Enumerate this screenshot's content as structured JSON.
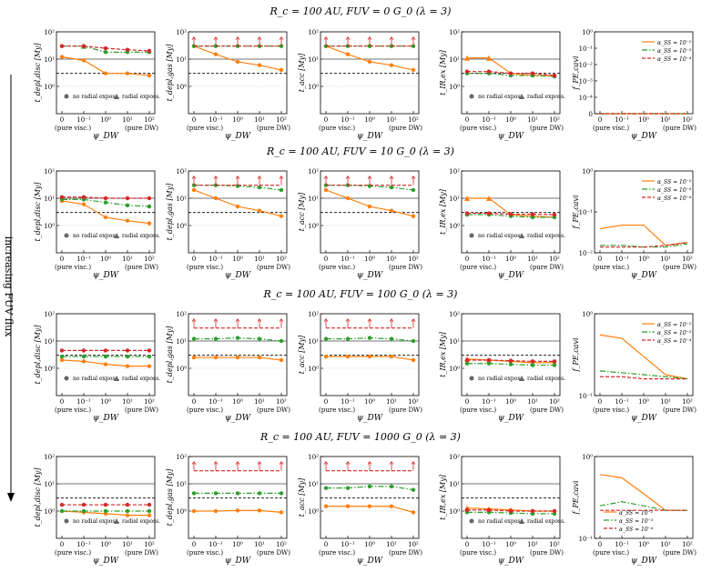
{
  "figure": {
    "side_label": "increasing FUV flux",
    "panel_titles": [
      "R_c = 100 AU, FUV = 0 G_0 (λ = 3)",
      "R_c = 100 AU, FUV = 10 G_0 (λ = 3)",
      "R_c = 100 AU, FUV = 100 G_0 (λ = 3)",
      "R_c = 100 AU, FUV = 1000 G_0 (λ = 3)"
    ],
    "ylabels": [
      "t_depl,disc [My]",
      "t_depl,gas [My]",
      "t_acc [My]",
      "t_IR,ex [My]",
      "f_PE,cavi"
    ],
    "xlabel_psi": "ψ_DW",
    "xlabel_last": "ψ_DW",
    "xticks": [
      "0",
      "10⁻¹",
      "10⁰",
      "10¹",
      "10²"
    ],
    "xlabel_left_note": "(pure visc.)",
    "xlabel_right_note": "(pure DW)",
    "ytick_labels_time": [
      "10²",
      "10¹",
      "10⁰"
    ],
    "ytick_labels_frac_row1": [
      "10⁰",
      "10⁻¹",
      "10⁻²",
      "10⁻³",
      "10⁻⁴",
      "0"
    ],
    "ytick_labels_frac_row2": [
      "10⁰",
      "10⁻¹",
      "10⁻²"
    ],
    "ytick_labels_frac_row34": [
      "10⁰",
      "10⁻¹"
    ],
    "marker_legend": {
      "circle": "no radial exposs.",
      "triangle": "radial exposs."
    },
    "line_legend": [
      "α_SS = 10⁻²",
      "α_SS = 10⁻³",
      "α_SS = 10⁻⁴"
    ]
  },
  "colors": {
    "orange": "#ff7f0e",
    "green": "#2ca02c",
    "red": "#d62728",
    "axis": "#000000",
    "ref": "#444444"
  },
  "chart_data": {
    "type": "line",
    "x": [
      0,
      0.1,
      1,
      10,
      100
    ],
    "xscale": "symlog",
    "alpha_series": [
      "1e-2",
      "1e-3",
      "1e-4"
    ],
    "yscale": "log",
    "ylim": [
      0.1,
      100
    ],
    "reference_lines": {
      "solid": 10,
      "dashed": 3
    },
    "rows": [
      {
        "fuv_G0": 0,
        "t_depl_disc": {
          "a1e-2": [
            12,
            9,
            3,
            3,
            2.5
          ],
          "a1e-3": [
            30,
            30,
            18,
            18,
            18
          ],
          "a1e-4": [
            30,
            30,
            25,
            22,
            20
          ]
        },
        "t_depl_gas": {
          "a1e-2": [
            30,
            15,
            8,
            6,
            4
          ],
          "a1e-3": [
            30,
            30,
            30,
            30,
            30
          ],
          "a1e-4": [
            30,
            30,
            30,
            30,
            30
          ]
        },
        "t_acc": {
          "a1e-2": [
            30,
            15,
            8,
            6,
            4
          ],
          "a1e-3": [
            30,
            30,
            30,
            30,
            30
          ],
          "a1e-4": [
            30,
            30,
            30,
            30,
            30
          ]
        },
        "t_IR_ex": {
          "a1e-2": [
            11,
            11,
            3,
            2.5,
            2.5
          ],
          "a1e-3": [
            3,
            3,
            2.5,
            2.5,
            2.3
          ],
          "a1e-4": [
            3.5,
            3.5,
            3,
            3,
            2.5
          ]
        },
        "f_PE_cavi": {
          "a1e-2": [
            0,
            0,
            0,
            0,
            0
          ],
          "a1e-3": [
            0,
            0,
            0,
            0,
            0
          ],
          "a1e-4": [
            0,
            0,
            0,
            0,
            0
          ]
        }
      },
      {
        "fuv_G0": 10,
        "t_depl_disc": {
          "a1e-2": [
            8,
            6,
            2,
            1.5,
            1.2
          ],
          "a1e-3": [
            9,
            9,
            7,
            5.5,
            5
          ],
          "a1e-4": [
            11,
            11,
            10,
            10,
            10
          ]
        },
        "t_depl_gas": {
          "a1e-2": [
            20,
            10,
            5,
            3.5,
            2.2
          ],
          "a1e-3": [
            30,
            30,
            28,
            25,
            20
          ],
          "a1e-4": [
            30,
            30,
            30,
            30,
            30
          ]
        },
        "t_acc": {
          "a1e-2": [
            20,
            10,
            5,
            3.5,
            2.2
          ],
          "a1e-3": [
            30,
            30,
            28,
            25,
            20
          ],
          "a1e-4": [
            30,
            30,
            30,
            30,
            30
          ]
        },
        "t_IR_ex": {
          "a1e-2": [
            10,
            10,
            2.5,
            2.2,
            2.0
          ],
          "a1e-3": [
            2.5,
            2.5,
            2.2,
            2,
            2
          ],
          "a1e-4": [
            2.8,
            2.8,
            2.6,
            2.6,
            2.5
          ]
        },
        "f_PE_cavi": {
          "a1e-2": [
            0.028,
            0.035,
            0.035,
            0.01,
            0.012
          ],
          "a1e-3": [
            0.01,
            0.01,
            0.009,
            0.009,
            0.011
          ],
          "a1e-4": [
            0.009,
            0.009,
            0.009,
            0.01,
            0.012
          ]
        }
      },
      {
        "fuv_G0": 100,
        "t_depl_disc": {
          "a1e-2": [
            2,
            1.8,
            1.4,
            1.2,
            1.2
          ],
          "a1e-3": [
            2.7,
            2.7,
            2.7,
            2.7,
            2.7
          ],
          "a1e-4": [
            4.5,
            4.5,
            4.5,
            4.5,
            4.5
          ]
        },
        "t_depl_gas": {
          "a1e-2": [
            2.5,
            2.5,
            2.5,
            2.5,
            2.0
          ],
          "a1e-3": [
            12,
            12,
            13,
            12,
            10
          ],
          "a1e-4": [
            30,
            30,
            30,
            30,
            30
          ]
        },
        "t_acc": {
          "a1e-2": [
            2.7,
            2.7,
            2.7,
            2.7,
            2.0
          ],
          "a1e-3": [
            12,
            12,
            13,
            12,
            10
          ],
          "a1e-4": [
            30,
            30,
            30,
            30,
            30
          ]
        },
        "t_IR_ex": {
          "a1e-2": [
            2.2,
            2.0,
            1.8,
            1.6,
            1.6
          ],
          "a1e-3": [
            1.5,
            1.5,
            1.4,
            1.3,
            1.3
          ],
          "a1e-4": [
            2.0,
            2.0,
            1.9,
            1.8,
            1.8
          ]
        },
        "f_PE_cavi": {
          "a1e-2": [
            0.55,
            0.5,
            0.3,
            0.18,
            0.16
          ],
          "a1e-3": [
            0.2,
            0.19,
            0.18,
            0.17,
            0.16
          ],
          "a1e-4": [
            0.17,
            0.17,
            0.16,
            0.16,
            0.16
          ]
        }
      },
      {
        "fuv_G0": 1000,
        "t_depl_disc": {
          "a1e-2": [
            1.0,
            0.9,
            0.8,
            0.7,
            0.7
          ],
          "a1e-3": [
            1.0,
            1.0,
            1.0,
            1.0,
            1.0
          ],
          "a1e-4": [
            1.7,
            1.7,
            1.7,
            1.7,
            1.7
          ]
        },
        "t_depl_gas": {
          "a1e-2": [
            1.0,
            1.0,
            1.05,
            1.05,
            0.9
          ],
          "a1e-3": [
            4.5,
            4.5,
            4.5,
            4.5,
            4.5
          ],
          "a1e-4": [
            30,
            30,
            30,
            30,
            30
          ]
        },
        "t_acc": {
          "a1e-2": [
            1.5,
            1.5,
            1.5,
            1.5,
            0.9
          ],
          "a1e-3": [
            7,
            7,
            8,
            8,
            6
          ],
          "a1e-4": [
            30,
            30,
            30,
            30,
            30
          ]
        },
        "t_IR_ex": {
          "a1e-2": [
            1.3,
            1.2,
            1.1,
            1.0,
            1.0
          ],
          "a1e-3": [
            0.9,
            0.9,
            0.85,
            0.8,
            0.8
          ],
          "a1e-4": [
            1.1,
            1.1,
            1.0,
            1.0,
            1.0
          ]
        },
        "f_PE_cavi": {
          "a1e-2": [
            0.6,
            0.55,
            0.35,
            0.22,
            0.22
          ],
          "a1e-3": [
            0.25,
            0.28,
            0.25,
            0.22,
            0.22
          ],
          "a1e-4": [
            0.22,
            0.22,
            0.22,
            0.22,
            0.22
          ]
        }
      }
    ]
  }
}
